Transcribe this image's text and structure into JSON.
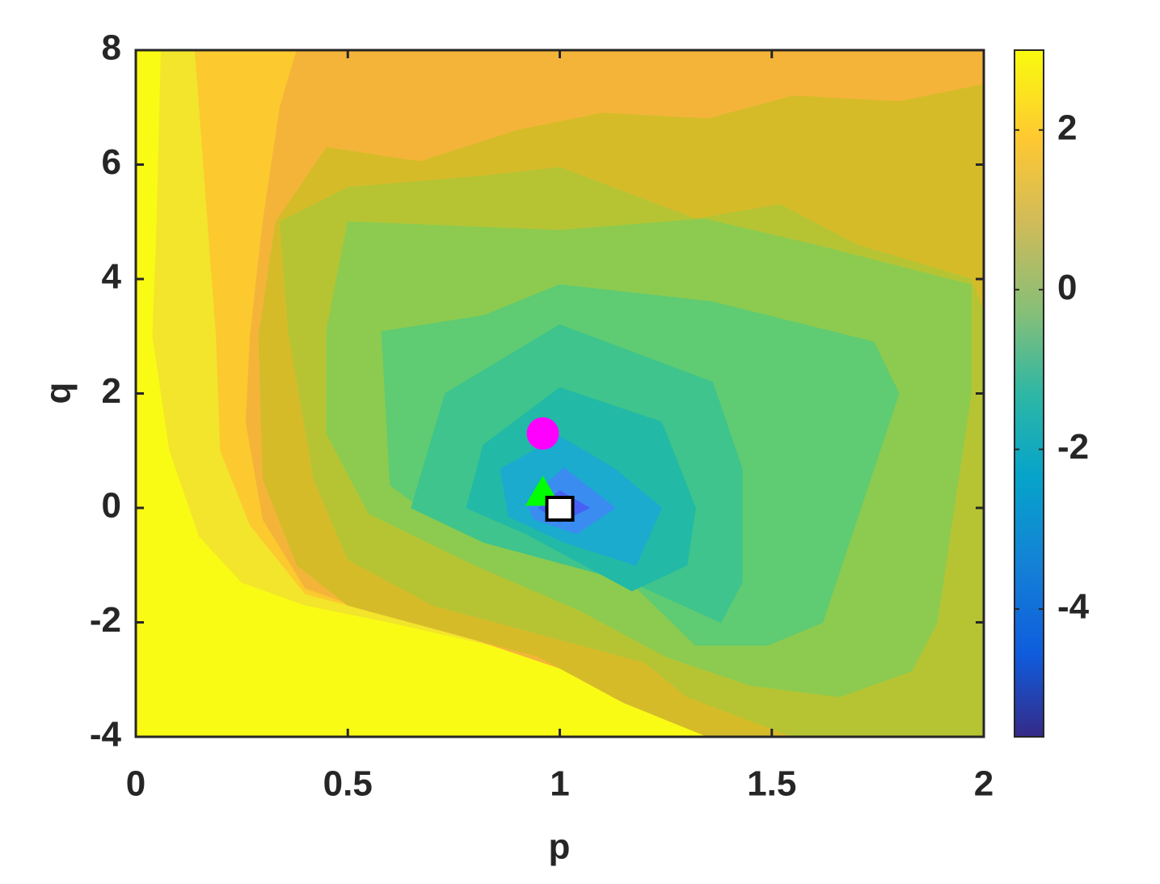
{
  "chart_data": {
    "type": "contour",
    "xlabel": "p",
    "ylabel": "q",
    "xlim": [
      0,
      2
    ],
    "ylim": [
      -4,
      8
    ],
    "xticks": [
      0,
      0.5,
      1,
      1.5,
      2
    ],
    "yticks": [
      -4,
      -2,
      0,
      2,
      4,
      6,
      8
    ],
    "colorbar": {
      "clim": [
        -5.6,
        3
      ],
      "ticks": [
        -4,
        -2,
        0,
        2
      ]
    },
    "contours": [
      {
        "level": 3.0,
        "color": "#f9fb15",
        "x": [
          0,
          2,
          2,
          0
        ],
        "y": [
          8,
          8,
          -4,
          -4
        ]
      },
      {
        "level": 2.6,
        "color": "#f2e52b",
        "x": [
          0.06,
          2,
          2,
          1.5,
          1.3,
          1.1,
          0.9,
          0.6,
          0.4,
          0.25,
          0.15,
          0.08,
          0.04,
          0.05
        ],
        "y": [
          8,
          8,
          -4,
          -4,
          -3.7,
          -3.0,
          -2.5,
          -2.0,
          -1.7,
          -1.3,
          -0.5,
          1,
          3,
          5
        ]
      },
      {
        "level": 2.2,
        "color": "#fcc92f",
        "x": [
          0.14,
          2,
          2,
          1.42,
          1.25,
          1.05,
          0.85,
          0.6,
          0.4,
          0.27,
          0.2,
          0.19,
          0.16
        ],
        "y": [
          8,
          8,
          -4,
          -4,
          -3.6,
          -2.9,
          -2.4,
          -1.9,
          -1.5,
          -0.3,
          1,
          3,
          6
        ]
      },
      {
        "level": 1.8,
        "color": "#f4b43a",
        "x": [
          0.38,
          2,
          2,
          1.38,
          1.2,
          1.0,
          0.8,
          0.55,
          0.4,
          0.3,
          0.26,
          0.27,
          0.3,
          0.34
        ],
        "y": [
          8,
          8,
          -4,
          -4,
          -3.5,
          -2.8,
          -2.3,
          -1.8,
          -1.4,
          -0.2,
          1.5,
          3,
          5,
          7
        ]
      },
      {
        "level": 1.4,
        "color": "#d6bb29",
        "x": [
          0.29,
          0.33,
          0.45,
          0.67,
          0.9,
          1.1,
          1.35,
          1.55,
          1.8,
          2,
          2,
          1.35,
          1.15,
          0.95,
          0.75,
          0.5,
          0.38,
          0.3
        ],
        "y": [
          3,
          5,
          6.3,
          6.05,
          6.6,
          6.9,
          6.8,
          7.2,
          7.1,
          7.4,
          -4,
          -4,
          -3.4,
          -2.6,
          -2.2,
          -1.7,
          -1.0,
          0.5
        ]
      },
      {
        "level": 1.0,
        "color": "#b6c434",
        "x": [
          0.36,
          0.34,
          0.5,
          0.82,
          1.0,
          1.32,
          1.52,
          1.7,
          1.97,
          2,
          2,
          1.55,
          1.3,
          1.2,
          0.95,
          0.7,
          0.5,
          0.42
        ],
        "y": [
          3.08,
          5.0,
          5.6,
          5.8,
          5.95,
          5.05,
          5.3,
          4.6,
          4.0,
          3.4,
          -4,
          -4,
          -3.3,
          -2.7,
          -2.2,
          -1.7,
          -0.9,
          0.5
        ]
      },
      {
        "level": 0.6,
        "color": "#8ccb4f",
        "x": [
          0.45,
          0.5,
          1.0,
          1.34,
          1.6,
          1.97,
          1.97,
          1.89,
          1.83,
          1.66,
          1.45,
          1.25,
          1.05,
          0.8,
          0.55,
          0.45
        ],
        "y": [
          3.1,
          5.0,
          4.85,
          5.05,
          4.6,
          3.9,
          2.0,
          -2,
          -2.85,
          -3.3,
          -3.1,
          -2.6,
          -1.8,
          -1.0,
          -0.1,
          1.3
        ]
      },
      {
        "level": 0.2,
        "color": "#5fcb73",
        "x": [
          0.58,
          0.82,
          1.0,
          1.36,
          1.74,
          1.8,
          1.62,
          1.49,
          1.32,
          1.05,
          0.71,
          0.6
        ],
        "y": [
          3.08,
          3.36,
          3.9,
          3.6,
          2.9,
          2.0,
          -2,
          -2.4,
          -2.4,
          -0.45,
          -0.2,
          0.4
        ]
      },
      {
        "level": -0.2,
        "color": "#3ec48c",
        "x": [
          0.73,
          1.0,
          1.36,
          1.43,
          1.43,
          1.38,
          1.17,
          0.82,
          0.65
        ],
        "y": [
          2.0,
          3.2,
          2.2,
          0.68,
          -1.3,
          -2.0,
          -1.3,
          -0.6,
          0
        ]
      },
      {
        "level": -0.6,
        "color": "#22b9a6",
        "x": [
          0.82,
          1.0,
          1.24,
          1.32,
          1.3,
          1.17,
          0.92,
          0.78
        ],
        "y": [
          1.1,
          2.1,
          1.5,
          0,
          -1.0,
          -1.45,
          -0.45,
          0
        ]
      },
      {
        "level": -1.4,
        "color": "#1aabcf",
        "x": [
          0.86,
          1.0,
          1.13,
          1.24,
          1.18,
          1.01,
          0.88
        ],
        "y": [
          0.68,
          1.25,
          0.68,
          0,
          -1.0,
          -0.6,
          -0.15
        ]
      },
      {
        "level": -3.0,
        "color": "#3a8cf0",
        "x": [
          0.92,
          1.01,
          1.13,
          1.04,
          0.94
        ],
        "y": [
          0.1,
          0.7,
          0,
          -0.45,
          -0.2
        ]
      },
      {
        "level": -4.2,
        "color": "#4761f5",
        "x": [
          0.95,
          1.0,
          1.07,
          1.0
        ],
        "y": [
          0,
          0.3,
          0,
          -0.25
        ]
      }
    ],
    "markers": [
      {
        "x": 0.96,
        "y": 1.3,
        "color": "#ff00ff",
        "shape": "circle"
      },
      {
        "x": 0.96,
        "y": 0.25,
        "color": "#00ff00",
        "shape": "triangle"
      },
      {
        "x": 1.0,
        "y": 0.0,
        "color": "#ffffff",
        "shape": "square"
      }
    ]
  }
}
